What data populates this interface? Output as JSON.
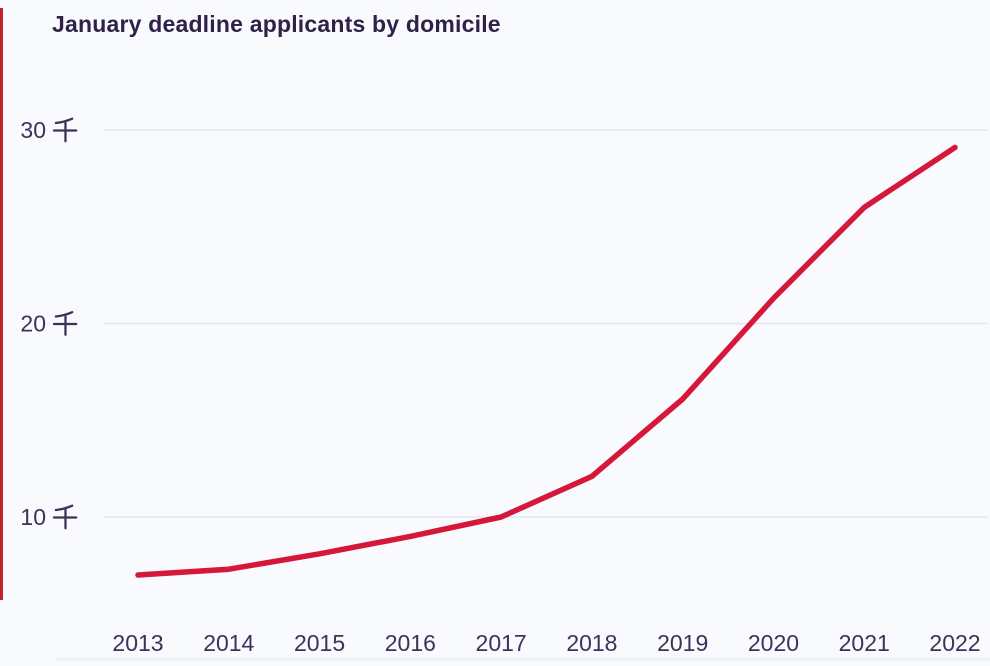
{
  "page": {
    "background": "#f9fafd",
    "accent_bar_color": "#c2242f"
  },
  "chart_data": {
    "type": "line",
    "title": "January deadline applicants by domicile",
    "x": [
      2013,
      2014,
      2015,
      2016,
      2017,
      2018,
      2019,
      2020,
      2021,
      2022
    ],
    "series": [
      {
        "name": "applicants",
        "values": [
          7.0,
          7.3,
          8.1,
          9.0,
          10.0,
          12.1,
          16.1,
          21.3,
          26.0,
          29.1
        ]
      }
    ],
    "unit": "千",
    "unit_meaning": "thousand",
    "y_ticks": [
      10,
      20,
      30
    ],
    "y_tick_labels": [
      "10 千",
      "20 千",
      "30 千"
    ],
    "ylim": [
      4.7,
      33.0
    ],
    "xlabel": "",
    "ylabel": "",
    "grid": "horizontal-only",
    "legend": "none",
    "line_color": "#d5173a",
    "grid_color": "#e3e6ee",
    "axis_text_color": "#3f3159",
    "title_color": "#2f2148",
    "baseline_color": "#f0f1f7"
  }
}
